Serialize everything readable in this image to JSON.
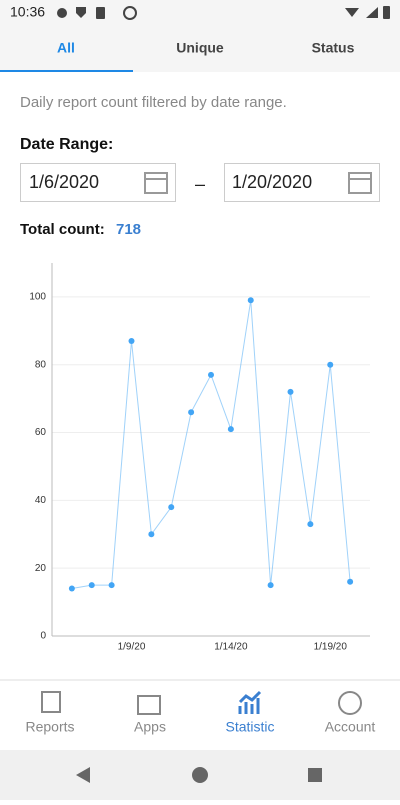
{
  "status_bar": {
    "time": "10:36"
  },
  "tabs": [
    "All",
    "Unique",
    "Status"
  ],
  "description": "Daily report count filtered by date range.",
  "date_range": {
    "label": "Date Range:",
    "start": "1/6/2020",
    "separator": "–",
    "end": "1/20/2020"
  },
  "total": {
    "label": "Total count:",
    "value": 718
  },
  "chart_data": {
    "type": "line",
    "categories": [
      null,
      null,
      null,
      "1/9/20",
      null,
      null,
      null,
      null,
      "1/14/20",
      null,
      null,
      null,
      null,
      "1/19/20",
      null
    ],
    "series": [
      {
        "color": "#42a5f5",
        "values": [
          14,
          15,
          15,
          87,
          30,
          38,
          66,
          77,
          61,
          99,
          15,
          72,
          33,
          80,
          16
        ]
      }
    ],
    "ylim": [
      0,
      110
    ],
    "yticks": [
      0,
      20,
      40,
      60,
      80,
      100
    ],
    "grid": true
  },
  "bottom_nav": [
    "Reports",
    "Apps",
    "Statistic",
    "Account"
  ]
}
